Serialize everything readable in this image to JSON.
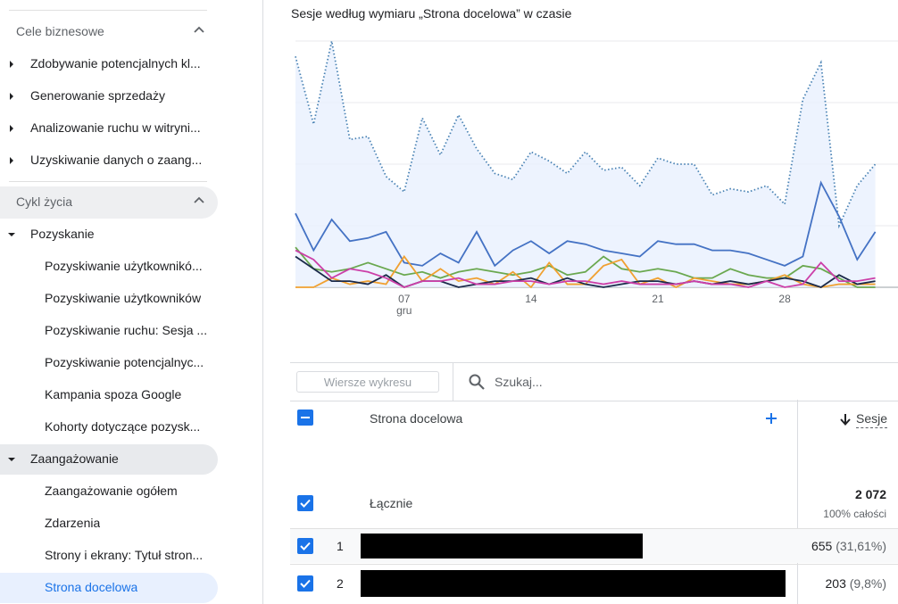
{
  "sidebar": {
    "business": {
      "title": "Cele biznesowe",
      "items": [
        {
          "label": "Zdobywanie potencjalnych kl..."
        },
        {
          "label": "Generowanie sprzedaży"
        },
        {
          "label": "Analizowanie ruchu w witryni..."
        },
        {
          "label": "Uzyskiwanie danych o zaang..."
        }
      ]
    },
    "lifecycle": {
      "title": "Cykl życia",
      "acquisition": {
        "label": "Pozyskanie",
        "items": [
          {
            "label": "Pozyskiwanie użytkownikó..."
          },
          {
            "label": "Pozyskiwanie użytkowników"
          },
          {
            "label": "Pozyskiwanie ruchu: Sesja ..."
          },
          {
            "label": "Pozyskiwanie potencjalnyc..."
          },
          {
            "label": "Kampania spoza Google"
          },
          {
            "label": "Kohorty dotyczące pozysk..."
          }
        ]
      },
      "engagement": {
        "label": "Zaangażowanie",
        "items": [
          {
            "label": "Zaangażowanie ogółem"
          },
          {
            "label": "Zdarzenia"
          },
          {
            "label": "Strony i ekrany: Tytuł stron..."
          },
          {
            "label": "Strona docelowa"
          }
        ]
      }
    }
  },
  "chart": {
    "title": "Sesje według wymiaru „Strona docelowa” w czasie"
  },
  "chart_data": {
    "type": "line",
    "title": "Sesje według wymiaru „Strona docelowa” w czasie",
    "x_tick_labels": [
      {
        "label": "07",
        "sub": "gru"
      },
      {
        "label": "14",
        "sub": ""
      },
      {
        "label": "21",
        "sub": ""
      },
      {
        "label": "28",
        "sub": ""
      }
    ],
    "x_tick_index": [
      6,
      13,
      20,
      27
    ],
    "ylim": [
      0,
      80
    ],
    "grid": true,
    "series": [
      {
        "color": "#4a83b4",
        "style": "dotted-area",
        "values": [
          75,
          53,
          80,
          48,
          49,
          36,
          31,
          55,
          43,
          56,
          45,
          37,
          35,
          44,
          41,
          37,
          44,
          38,
          39,
          33,
          42,
          40,
          40,
          30,
          32,
          31,
          33,
          27,
          61,
          73,
          20,
          33,
          40
        ]
      },
      {
        "color": "#4472c4",
        "style": "solid",
        "values": [
          24,
          12,
          22,
          15,
          16,
          18,
          8,
          7,
          11,
          8,
          18,
          7,
          12,
          15,
          11,
          15,
          14,
          12,
          11,
          10,
          15,
          14,
          14,
          12,
          12,
          11,
          9,
          7,
          10,
          34,
          23,
          9,
          18
        ]
      },
      {
        "color": "#6aa84f",
        "style": "solid",
        "values": [
          13,
          6,
          5,
          6,
          8,
          6,
          4,
          5,
          3,
          5,
          6,
          5,
          4,
          5,
          7,
          4,
          5,
          10,
          6,
          5,
          6,
          5,
          3,
          3,
          6,
          4,
          3,
          3,
          7,
          6,
          3,
          0,
          0
        ]
      },
      {
        "color": "#f0a030",
        "style": "solid",
        "values": [
          0,
          0,
          3,
          1,
          2,
          1,
          10,
          2,
          6,
          2,
          3,
          1,
          5,
          0,
          8,
          1,
          1,
          7,
          9,
          1,
          3,
          0,
          3,
          2,
          1,
          1,
          2,
          4,
          1,
          0,
          1,
          1,
          1
        ]
      },
      {
        "color": "#1b2a4a",
        "style": "solid",
        "values": [
          10,
          6,
          2,
          2,
          1,
          4,
          0,
          2,
          2,
          0,
          1,
          2,
          2,
          3,
          1,
          3,
          1,
          0,
          1,
          2,
          2,
          1,
          2,
          1,
          2,
          1,
          2,
          3,
          2,
          0,
          4,
          1,
          2
        ]
      },
      {
        "color": "#cc3fa8",
        "style": "solid",
        "values": [
          12,
          9,
          3,
          6,
          5,
          3,
          0,
          2,
          2,
          3,
          1,
          1,
          2,
          2,
          1,
          2,
          2,
          1,
          2,
          1,
          1,
          1,
          2,
          1,
          1,
          0,
          2,
          0,
          1,
          8,
          2,
          2,
          3
        ]
      }
    ]
  },
  "table": {
    "rows_button": "Wiersze wykresu",
    "search_placeholder": "Szukaj...",
    "dim_header": "Strona docelowa",
    "metric_header": "Sesje",
    "total_label": "Łącznie",
    "total_value": "2 072",
    "total_pct": "100% całości",
    "rows": [
      {
        "num": "1",
        "value": "655",
        "pct": "(31,61%)"
      },
      {
        "num": "2",
        "value": "203",
        "pct": "(9,8%)"
      }
    ]
  },
  "colors": {
    "accent": "#1a73e8",
    "active_bg": "#e8f0fe"
  }
}
